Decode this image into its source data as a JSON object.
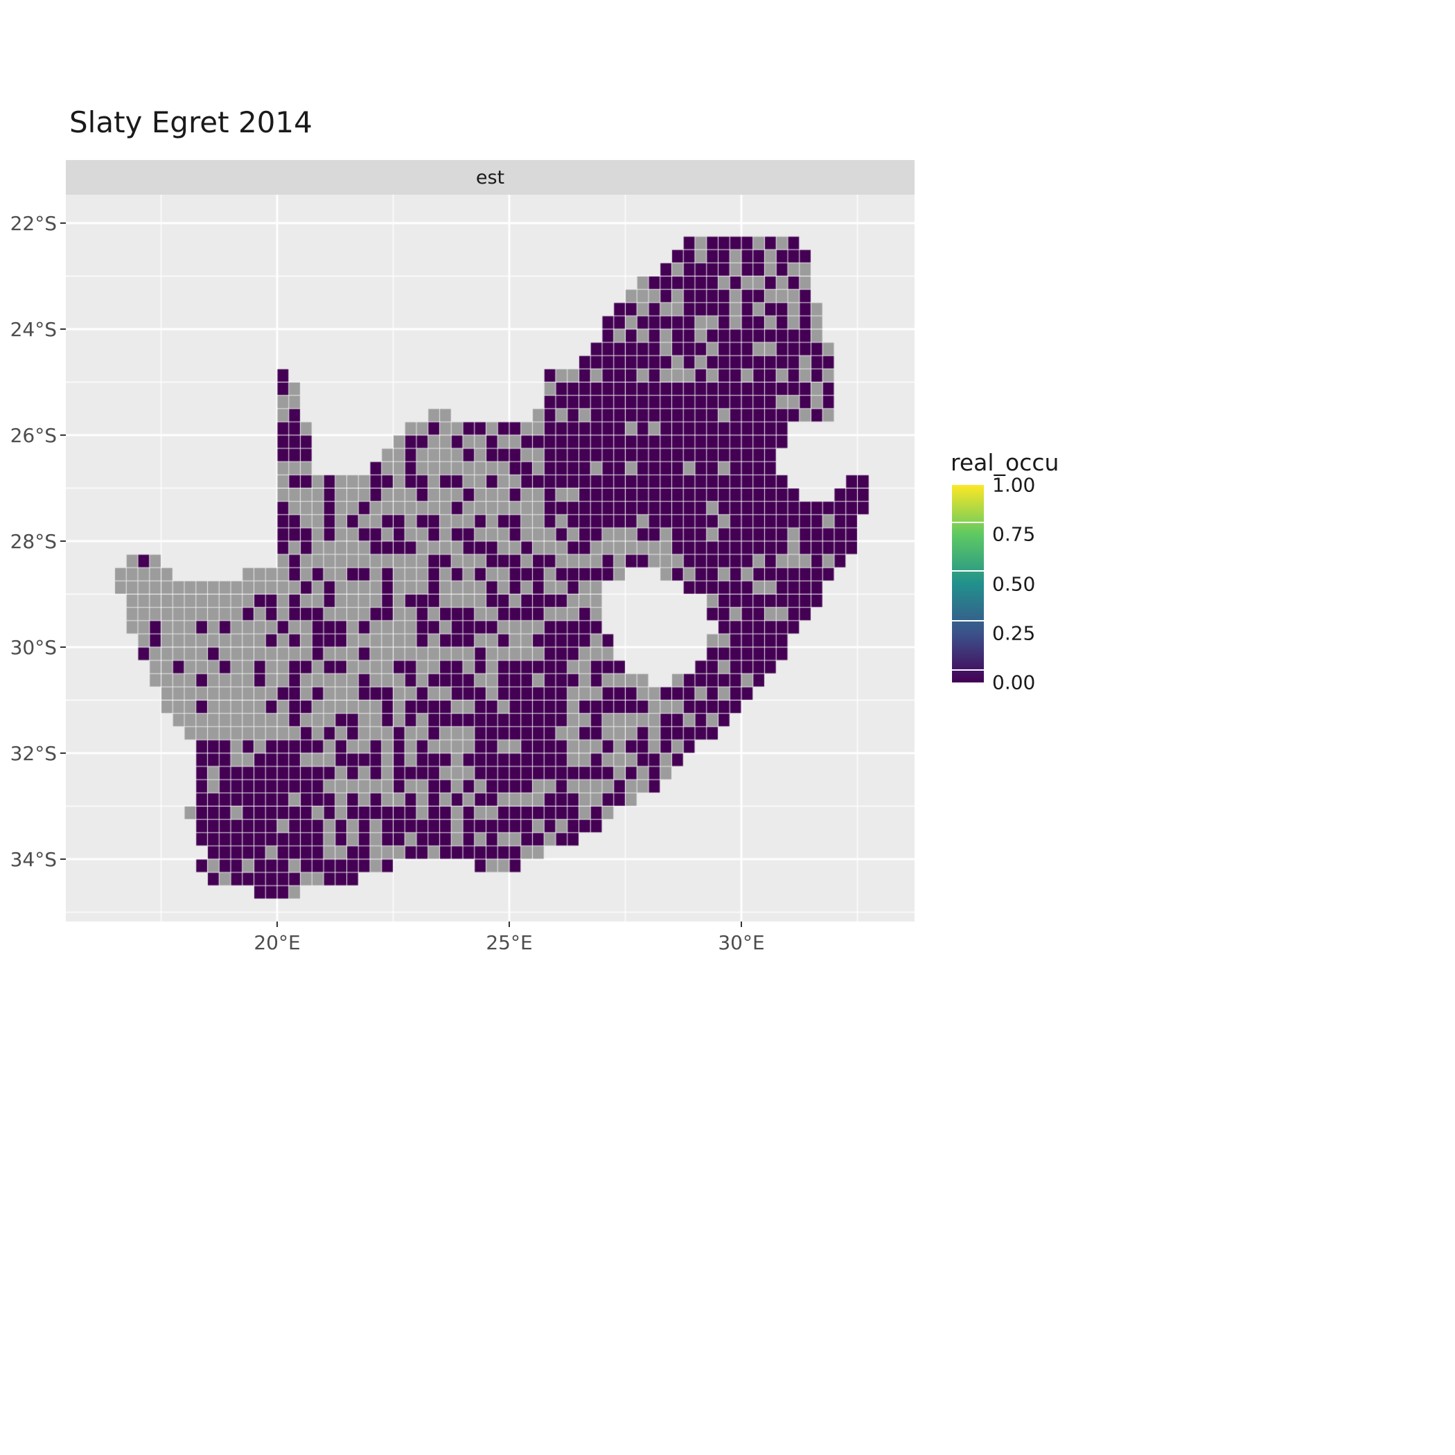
{
  "chart_data": {
    "type": "heatmap",
    "title": "Slaty Egret 2014",
    "facet_label": "est",
    "x_axis": {
      "tick_labels": [
        "20°E",
        "25°E",
        "30°E"
      ],
      "tick_lons": [
        20,
        25,
        30
      ],
      "minor_lons": [
        17.5,
        22.5,
        27.5,
        32.5
      ],
      "range_lon": [
        15.45,
        33.73
      ]
    },
    "y_axis": {
      "tick_labels": [
        "22°S",
        "24°S",
        "26°S",
        "28°S",
        "30°S",
        "32°S",
        "34°S"
      ],
      "tick_lats": [
        -22,
        -24,
        -26,
        -28,
        -30,
        -32,
        -34
      ],
      "minor_lats": [
        -23,
        -25,
        -27,
        -29,
        -31,
        -33,
        -35
      ],
      "range_lat": [
        -21.46,
        -35.18
      ]
    },
    "legend": {
      "title": "real_occu",
      "tick_labels": [
        "1.00",
        "0.75",
        "0.50",
        "0.25",
        "0.00"
      ],
      "tick_values": [
        1,
        0.75,
        0.5,
        0.25,
        0
      ],
      "stops": [
        {
          "v": 0.0,
          "color": "#440154"
        },
        {
          "v": 0.25,
          "color": "#3B528B"
        },
        {
          "v": 0.5,
          "color": "#21918C"
        },
        {
          "v": 0.75,
          "color": "#5EC962"
        },
        {
          "v": 1.0,
          "color": "#FDE725"
        }
      ]
    },
    "colors": {
      "panel_bg": "#EBEBEB",
      "strip_bg": "#D9D9D9",
      "grid": "#FFFFFF",
      "na_cell": "#9C9C9C",
      "zero_cell": "#440154",
      "one_cell": "#FDE725",
      "axis_text": "#4D4D4D",
      "title_text": "#1A1A1A"
    },
    "map": {
      "cell_deg": 0.25,
      "outline": [
        [
          16.45,
          -28.58
        ],
        [
          16.78,
          -28.25
        ],
        [
          17.25,
          -28.23
        ],
        [
          17.7,
          -28.55
        ],
        [
          18.2,
          -28.88
        ],
        [
          18.7,
          -28.85
        ],
        [
          19.3,
          -28.55
        ],
        [
          19.98,
          -28.42
        ],
        [
          19.98,
          -24.72
        ],
        [
          20.35,
          -25.05
        ],
        [
          20.65,
          -25.9
        ],
        [
          20.82,
          -26.55
        ],
        [
          20.9,
          -26.82
        ],
        [
          21.6,
          -26.85
        ],
        [
          22.05,
          -26.6
        ],
        [
          22.55,
          -26.15
        ],
        [
          23.0,
          -25.65
        ],
        [
          23.65,
          -25.6
        ],
        [
          24.2,
          -25.75
        ],
        [
          24.9,
          -25.82
        ],
        [
          25.45,
          -25.7
        ],
        [
          25.65,
          -25.45
        ],
        [
          25.9,
          -24.73
        ],
        [
          26.45,
          -24.63
        ],
        [
          26.85,
          -24.25
        ],
        [
          27.15,
          -23.58
        ],
        [
          27.75,
          -23.2
        ],
        [
          28.35,
          -22.7
        ],
        [
          29.05,
          -22.15
        ],
        [
          29.45,
          -22.13
        ],
        [
          29.95,
          -22.2
        ],
        [
          30.6,
          -22.3
        ],
        [
          31.3,
          -22.35
        ],
        [
          31.55,
          -23.1
        ],
        [
          31.7,
          -23.9
        ],
        [
          31.95,
          -24.4
        ],
        [
          32.05,
          -25.1
        ],
        [
          31.98,
          -25.62
        ],
        [
          31.35,
          -25.68
        ],
        [
          30.95,
          -26.0
        ],
        [
          30.78,
          -26.4
        ],
        [
          30.95,
          -26.95
        ],
        [
          31.3,
          -27.25
        ],
        [
          31.95,
          -27.32
        ],
        [
          32.15,
          -26.88
        ],
        [
          32.88,
          -26.85
        ],
        [
          32.55,
          -27.6
        ],
        [
          32.35,
          -28.3
        ],
        [
          31.8,
          -28.95
        ],
        [
          31.05,
          -29.9
        ],
        [
          30.55,
          -30.65
        ],
        [
          29.95,
          -31.15
        ],
        [
          29.35,
          -31.7
        ],
        [
          28.75,
          -32.1
        ],
        [
          28.05,
          -32.75
        ],
        [
          27.35,
          -33.05
        ],
        [
          26.45,
          -33.75
        ],
        [
          25.9,
          -33.78
        ],
        [
          25.62,
          -34.05
        ],
        [
          24.85,
          -34.2
        ],
        [
          24.1,
          -34.1
        ],
        [
          23.35,
          -34.1
        ],
        [
          22.55,
          -34.05
        ],
        [
          21.75,
          -34.4
        ],
        [
          20.95,
          -34.45
        ],
        [
          20.25,
          -34.7
        ],
        [
          19.98,
          -34.8
        ],
        [
          19.35,
          -34.6
        ],
        [
          19.1,
          -34.42
        ],
        [
          18.82,
          -34.45
        ],
        [
          18.45,
          -34.35
        ],
        [
          18.33,
          -34.1
        ],
        [
          18.48,
          -33.85
        ],
        [
          18.28,
          -33.45
        ],
        [
          17.95,
          -33.1
        ],
        [
          18.32,
          -32.65
        ],
        [
          18.25,
          -31.95
        ],
        [
          17.85,
          -31.55
        ],
        [
          17.3,
          -30.65
        ],
        [
          17.0,
          -29.95
        ],
        [
          16.75,
          -29.35
        ],
        [
          16.45,
          -28.58
        ]
      ],
      "lesotho_hole": [
        [
          27.05,
          -28.9
        ],
        [
          27.6,
          -28.58
        ],
        [
          28.25,
          -28.62
        ],
        [
          28.75,
          -28.82
        ],
        [
          29.18,
          -29.15
        ],
        [
          29.45,
          -29.7
        ],
        [
          29.15,
          -30.2
        ],
        [
          28.55,
          -30.65
        ],
        [
          28.0,
          -30.62
        ],
        [
          27.45,
          -30.32
        ],
        [
          27.02,
          -29.65
        ]
      ],
      "zones": [
        {
          "name": "highveld-dark-block",
          "lon": [
            25.8,
            31.2
          ],
          "lat": [
            -27.8,
            -24.9
          ],
          "p": 0.95
        },
        {
          "name": "limpopo-northeast",
          "lon": [
            26.0,
            32.3
          ],
          "lat": [
            -24.9,
            -22.0
          ],
          "p": 0.7
        },
        {
          "name": "kruger-east",
          "lon": [
            31.2,
            32.3
          ],
          "lat": [
            -26.9,
            -24.9
          ],
          "p": 0.75
        },
        {
          "name": "kwazulu-east-coast",
          "lon": [
            28.4,
            33.0
          ],
          "lat": [
            -32.5,
            -26.9
          ],
          "p": 0.82
        },
        {
          "name": "southwest-cape",
          "lon": [
            17.6,
            20.9
          ],
          "lat": [
            -35.3,
            -31.7
          ],
          "p": 0.82
        },
        {
          "name": "south-coast",
          "lon": [
            20.9,
            27.7
          ],
          "lat": [
            -35.3,
            -33.1
          ],
          "p": 0.66
        },
        {
          "name": "karoo-dark-patch",
          "lon": [
            24.3,
            26.3
          ],
          "lat": [
            -32.5,
            -30.3
          ],
          "p": 0.82
        },
        {
          "name": "northern-cape-west",
          "lon": [
            15.4,
            19.9
          ],
          "lat": [
            -31.7,
            -28.3
          ],
          "p": 0.1
        },
        {
          "name": "northern-cape-east",
          "lon": [
            19.9,
            22.3
          ],
          "lat": [
            -31.7,
            -28.3
          ],
          "p": 0.3
        },
        {
          "name": "northwest-border-strip",
          "lon": [
            15.4,
            19.9
          ],
          "lat": [
            -28.3,
            -27.7
          ],
          "p": 0.3
        },
        {
          "name": "kalahari-spike",
          "lon": [
            19.9,
            22.3
          ],
          "lat": [
            -27.2,
            -24.2
          ],
          "p": 0.45
        },
        {
          "name": "molopo-north-central",
          "lon": [
            22.3,
            25.8
          ],
          "lat": [
            -26.9,
            -24.8
          ],
          "p": 0.35
        },
        {
          "name": "central-plateau",
          "lon": [
            22.3,
            25.8
          ],
          "lat": [
            -28.3,
            -26.9
          ],
          "p": 0.3
        },
        {
          "name": "free-state",
          "lon": [
            24.6,
            28.4
          ],
          "lat": [
            -30.3,
            -27.8
          ],
          "p": 0.45
        },
        {
          "name": "eastern-cape-inland",
          "lon": [
            24.3,
            28.4
          ],
          "lat": [
            -33.1,
            -30.3
          ],
          "p": 0.5
        },
        {
          "name": "karoo-central",
          "lon": [
            19.9,
            24.3
          ],
          "lat": [
            -33.1,
            -28.3
          ],
          "p": 0.4
        }
      ],
      "default_p": 0.4,
      "high_cells": [
        [
          18.15,
          -34.05
        ],
        [
          18.4,
          -34.6
        ],
        [
          18.85,
          -34.6
        ],
        [
          25.6,
          -34.05
        ]
      ]
    }
  }
}
